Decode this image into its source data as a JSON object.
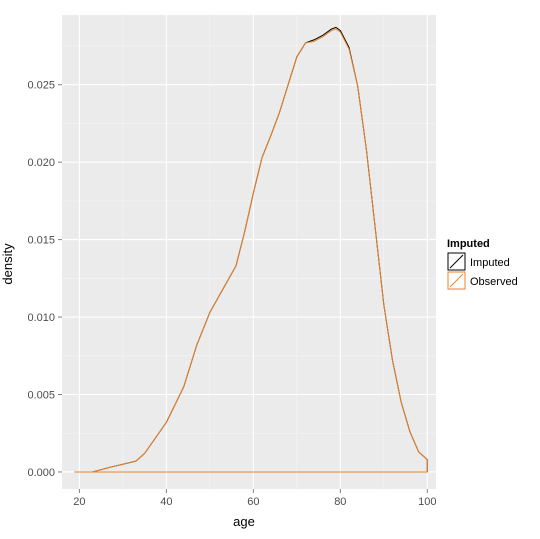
{
  "chart_data": {
    "type": "area",
    "xlabel": "age",
    "ylabel": "density",
    "xlim": [
      16,
      102
    ],
    "ylim": [
      -0.0011,
      0.0295
    ],
    "x_ticks": [
      20,
      40,
      60,
      80,
      100
    ],
    "y_ticks": [
      0.0,
      0.005,
      0.01,
      0.015,
      0.02,
      0.025
    ],
    "x_tick_labels": [
      "20",
      "40",
      "60",
      "80",
      "100"
    ],
    "y_tick_labels": [
      "0.000",
      "0.005",
      "0.010",
      "0.015",
      "0.020",
      "0.025"
    ],
    "grid": true,
    "legend": {
      "title": "Imputed",
      "position": "right",
      "entries": [
        "Imputed",
        "Observed"
      ]
    },
    "series": [
      {
        "name": "Imputed",
        "color": "#000000",
        "x": [
          19,
          23,
          27,
          30,
          33,
          35,
          37,
          40,
          44,
          47,
          50,
          53,
          56,
          58,
          60,
          62,
          64,
          66,
          68,
          70,
          72,
          74,
          76,
          78,
          79,
          80,
          82,
          84,
          86,
          88,
          90,
          92,
          94,
          96,
          98,
          100
        ],
        "y": [
          0.0,
          0.0,
          0.0003,
          0.0005,
          0.0007,
          0.0012,
          0.002,
          0.0032,
          0.0055,
          0.0082,
          0.0103,
          0.0118,
          0.0133,
          0.0155,
          0.018,
          0.0203,
          0.0217,
          0.0232,
          0.025,
          0.0268,
          0.0277,
          0.0279,
          0.0282,
          0.0286,
          0.0287,
          0.0285,
          0.0274,
          0.0249,
          0.0208,
          0.0158,
          0.0108,
          0.0072,
          0.0045,
          0.0026,
          0.0013,
          0.0008
        ]
      },
      {
        "name": "Observed",
        "color": "#e8832a",
        "x": [
          19,
          23,
          27,
          30,
          33,
          35,
          37,
          40,
          44,
          47,
          50,
          53,
          56,
          58,
          60,
          62,
          64,
          66,
          68,
          70,
          72,
          74,
          76,
          78,
          79,
          80,
          82,
          84,
          86,
          88,
          90,
          92,
          94,
          96,
          98,
          100
        ],
        "y": [
          0.0,
          0.0,
          0.0003,
          0.0005,
          0.0007,
          0.0012,
          0.002,
          0.0032,
          0.0055,
          0.0082,
          0.0103,
          0.0118,
          0.0133,
          0.0155,
          0.018,
          0.0203,
          0.0217,
          0.0232,
          0.025,
          0.0268,
          0.0277,
          0.0278,
          0.0281,
          0.0285,
          0.0286,
          0.0284,
          0.0273,
          0.0249,
          0.0208,
          0.0158,
          0.0108,
          0.0072,
          0.0045,
          0.0026,
          0.0013,
          0.0008
        ]
      }
    ]
  }
}
